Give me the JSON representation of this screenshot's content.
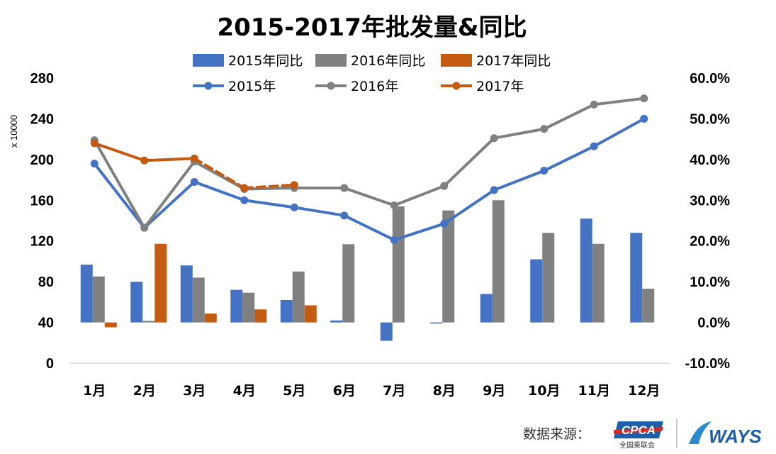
{
  "chart_data": {
    "type": "bar+line",
    "title": "2015-2017年批发量&同比",
    "y_left_unit": "x 10000",
    "y_left_ticks": [
      280,
      240,
      200,
      160,
      120,
      80,
      40,
      0
    ],
    "y_left_range": [
      0,
      280
    ],
    "y_right_ticks": [
      "60.0%",
      "50.0%",
      "40.0%",
      "30.0%",
      "20.0%",
      "10.0%",
      "0.0%",
      "-10.0%"
    ],
    "y_right_range": [
      -10,
      60
    ],
    "categories": [
      "1月",
      "2月",
      "3月",
      "4月",
      "5月",
      "6月",
      "7月",
      "8月",
      "9月",
      "10月",
      "11月",
      "12月"
    ],
    "bar_series": [
      {
        "name": "2015年同比",
        "color": "#4472c4",
        "values": [
          14.2,
          10.0,
          14.0,
          8.0,
          5.5,
          0.5,
          -4.5,
          -0.2,
          7.0,
          15.5,
          25.5,
          22.0
        ]
      },
      {
        "name": "2016年同比",
        "color": "#808080",
        "values": [
          11.3,
          0.4,
          11.0,
          7.3,
          12.5,
          19.2,
          28.5,
          27.5,
          30.0,
          22.0,
          19.3,
          8.3
        ]
      },
      {
        "name": "2017年同比",
        "color": "#c55a11",
        "values": [
          -1.2,
          19.3,
          2.2,
          3.2,
          4.2,
          null,
          null,
          null,
          null,
          null,
          null,
          null
        ]
      }
    ],
    "line_series": [
      {
        "name": "2015年",
        "color": "#4472c4",
        "values": [
          196,
          133,
          178,
          160,
          153,
          145,
          121,
          137,
          170,
          189,
          213,
          240
        ]
      },
      {
        "name": "2016年",
        "color": "#808080",
        "values": [
          219,
          133,
          198,
          171,
          172,
          172,
          155,
          174,
          221,
          230,
          254,
          260
        ]
      },
      {
        "name": "2017年",
        "color": "#c55a11",
        "values": [
          216,
          199,
          201,
          172,
          175,
          null,
          null,
          null,
          null,
          null,
          null,
          null
        ],
        "dashed_from_index": 2
      }
    ],
    "legend_position": "top",
    "grid": false
  },
  "footer": {
    "source_label": "数据来源：",
    "logo_cpca": "CPCA",
    "logo_cpca_sub": "全国乘联会",
    "logo_ways": "WAYS"
  }
}
